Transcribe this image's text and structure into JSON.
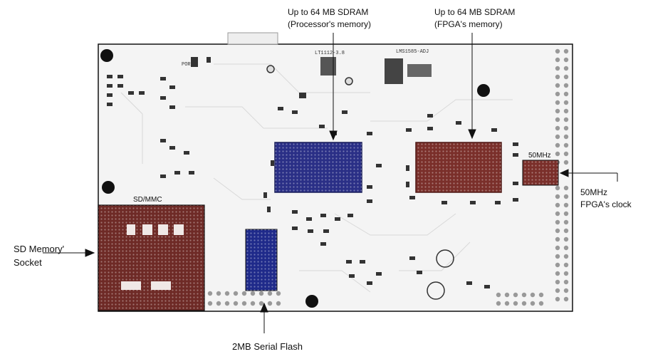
{
  "callouts": {
    "sdram_processor": {
      "line1": "Up to 64 MB SDRAM",
      "line2": "(Processor's memory)"
    },
    "sdram_fpga": {
      "line1": "Up to 64 MB SDRAM",
      "line2": "(FPGA's memory)"
    },
    "clock": {
      "line1": "50MHz",
      "line2": "FPGA's clock"
    },
    "sd_socket": {
      "line1": "SD Memory'",
      "line2": "Socket"
    },
    "serial_flash": {
      "line1": "2MB Serial Flash"
    }
  },
  "silkscreen": {
    "sd_mmc": "SD/MMC",
    "osc_50mhz": "50MHz",
    "regulator_1": "LT1112-3.8",
    "regulator_2": "LMS1585-ADJ",
    "por": "POR"
  },
  "colors": {
    "board": "#f4f4f4",
    "processor_sdram": "#2a2f86",
    "fpga_sdram": "#7a2f2a",
    "sd_socket": "#6e2a26",
    "serial_flash": "#1f2a8a",
    "oscillator": "#7a2f2a",
    "component": "#333333"
  }
}
